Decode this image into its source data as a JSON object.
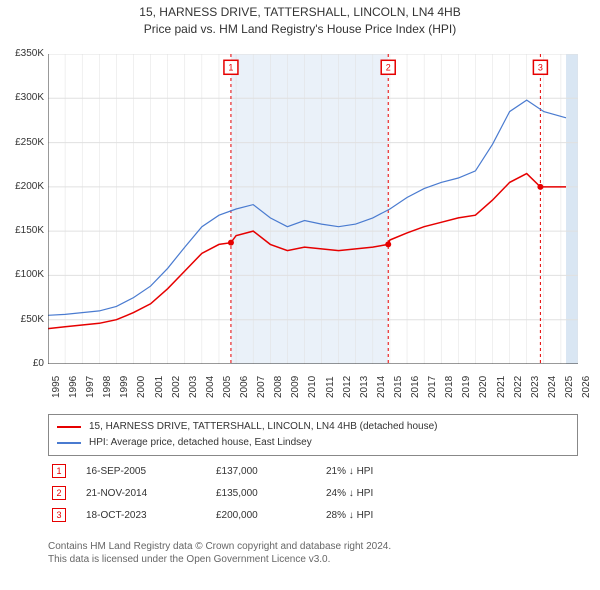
{
  "title_line1": "15, HARNESS DRIVE, TATTERSHALL, LINCOLN, LN4 4HB",
  "title_line2": "Price paid vs. HM Land Registry's House Price Index (HPI)",
  "chart": {
    "type": "line",
    "background_color": "#ffffff",
    "grid_color": "#e0e0e0",
    "shaded_future_color": "#d9e6f3",
    "shaded_future_x": [
      2025.3,
      2026
    ],
    "shaded_mid_color": "#eaf1f9",
    "shaded_mid_x": [
      2005.7,
      2014.9
    ],
    "xlim": [
      1995,
      2026
    ],
    "ylim": [
      0,
      350000
    ],
    "ytick_step": 50000,
    "ytick_labels": [
      "£0",
      "£50K",
      "£100K",
      "£150K",
      "£200K",
      "£250K",
      "£300K",
      "£350K"
    ],
    "xtick_step": 1,
    "xtick_labels": [
      "1995",
      "1996",
      "1997",
      "1998",
      "1999",
      "2000",
      "2001",
      "2002",
      "2003",
      "2004",
      "2005",
      "2006",
      "2007",
      "2008",
      "2009",
      "2010",
      "2011",
      "2012",
      "2013",
      "2014",
      "2015",
      "2016",
      "2017",
      "2018",
      "2019",
      "2020",
      "2021",
      "2022",
      "2023",
      "2024",
      "2025",
      "2026"
    ],
    "axis_fontsize": 10,
    "title_fontsize": 12,
    "series": [
      {
        "name": "property",
        "legend": "15, HARNESS DRIVE, TATTERSHALL, LINCOLN, LN4 4HB (detached house)",
        "color": "#e60000",
        "line_width": 1.5,
        "x": [
          1995,
          1996,
          1997,
          1998,
          1999,
          2000,
          2001,
          2002,
          2003,
          2004,
          2005,
          2005.7,
          2006,
          2007,
          2008,
          2009,
          2010,
          2011,
          2012,
          2013,
          2014,
          2014.9,
          2015,
          2016,
          2017,
          2018,
          2019,
          2020,
          2021,
          2022,
          2023,
          2023.8,
          2024,
          2025.3
        ],
        "y": [
          40000,
          42000,
          44000,
          46000,
          50000,
          58000,
          68000,
          85000,
          105000,
          125000,
          135000,
          137000,
          145000,
          150000,
          135000,
          128000,
          132000,
          130000,
          128000,
          130000,
          132000,
          135000,
          140000,
          148000,
          155000,
          160000,
          165000,
          168000,
          185000,
          205000,
          215000,
          200000,
          200000,
          200000
        ]
      },
      {
        "name": "hpi",
        "legend": "HPI: Average price, detached house, East Lindsey",
        "color": "#4a7bd0",
        "line_width": 1.2,
        "x": [
          1995,
          1996,
          1997,
          1998,
          1999,
          2000,
          2001,
          2002,
          2003,
          2004,
          2005,
          2006,
          2007,
          2008,
          2009,
          2010,
          2011,
          2012,
          2013,
          2014,
          2015,
          2016,
          2017,
          2018,
          2019,
          2020,
          2021,
          2022,
          2023,
          2024,
          2025.3
        ],
        "y": [
          55000,
          56000,
          58000,
          60000,
          65000,
          75000,
          88000,
          108000,
          132000,
          155000,
          168000,
          175000,
          180000,
          165000,
          155000,
          162000,
          158000,
          155000,
          158000,
          165000,
          175000,
          188000,
          198000,
          205000,
          210000,
          218000,
          248000,
          285000,
          298000,
          285000,
          278000
        ]
      }
    ],
    "event_lines": [
      {
        "x": 2005.7,
        "color": "#e60000",
        "dash": "3,3"
      },
      {
        "x": 2014.9,
        "color": "#e60000",
        "dash": "3,3"
      },
      {
        "x": 2023.8,
        "color": "#e60000",
        "dash": "3,3"
      }
    ],
    "event_markers": [
      {
        "n": "1",
        "x": 2005.7,
        "y_marker": 137000,
        "label_y": 335000
      },
      {
        "n": "2",
        "x": 2014.9,
        "y_marker": 135000,
        "label_y": 335000
      },
      {
        "n": "3",
        "x": 2023.8,
        "y_marker": 200000,
        "label_y": 335000
      }
    ],
    "marker_box_color": "#e60000",
    "marker_box_size": 14,
    "marker_fontsize": 9,
    "point_marker_radius": 3
  },
  "legend": {
    "border_color": "#888888",
    "fontsize": 10
  },
  "events": [
    {
      "n": "1",
      "date": "16-SEP-2005",
      "price": "£137,000",
      "delta": "21% ↓ HPI"
    },
    {
      "n": "2",
      "date": "21-NOV-2014",
      "price": "£135,000",
      "delta": "24% ↓ HPI"
    },
    {
      "n": "3",
      "date": "18-OCT-2023",
      "price": "£200,000",
      "delta": "28% ↓ HPI"
    }
  ],
  "footer_line1": "Contains HM Land Registry data © Crown copyright and database right 2024.",
  "footer_line2": "This data is licensed under the Open Government Licence v3.0."
}
